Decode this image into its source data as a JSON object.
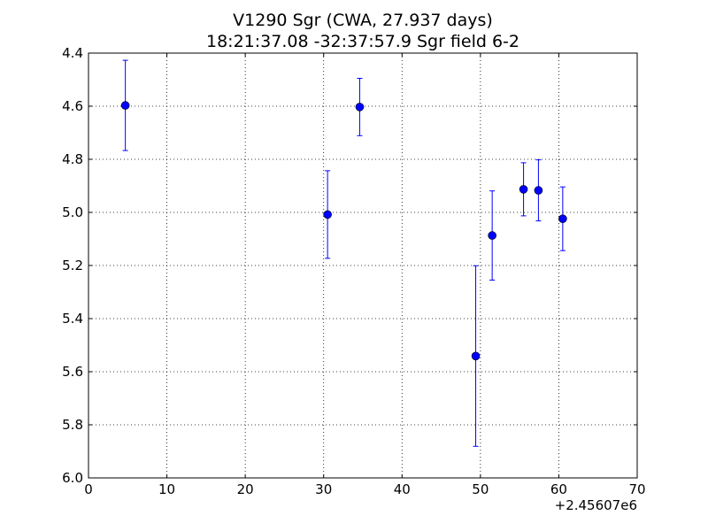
{
  "chart_data": {
    "type": "scatter",
    "title_line1": "V1290 Sgr (CWA, 27.937 days)",
    "title_line2": "18:21:37.08 -32:37:57.9 Sgr field 6-2",
    "x_offset_label": "+2.45607e6",
    "xlim": [
      0,
      70
    ],
    "ylim": [
      4.4,
      6.0
    ],
    "y_inverted": true,
    "grid": true,
    "x_ticks": [
      "0",
      "10",
      "20",
      "30",
      "40",
      "50",
      "60",
      "70"
    ],
    "y_ticks": [
      "4.4",
      "4.6",
      "4.8",
      "5.0",
      "5.2",
      "5.4",
      "5.6",
      "5.8",
      "6.0"
    ],
    "marker_color": "#0000ff",
    "points": [
      {
        "x": 4.7,
        "y": 4.597,
        "err": 0.17
      },
      {
        "x": 30.5,
        "y": 5.008,
        "err": 0.165
      },
      {
        "x": 34.6,
        "y": 4.603,
        "err": 0.108
      },
      {
        "x": 49.4,
        "y": 5.541,
        "err": 0.34
      },
      {
        "x": 51.5,
        "y": 5.087,
        "err": 0.168
      },
      {
        "x": 55.5,
        "y": 4.913,
        "err": 0.1
      },
      {
        "x": 57.4,
        "y": 4.917,
        "err": 0.115
      },
      {
        "x": 60.5,
        "y": 5.024,
        "err": 0.12
      }
    ]
  }
}
